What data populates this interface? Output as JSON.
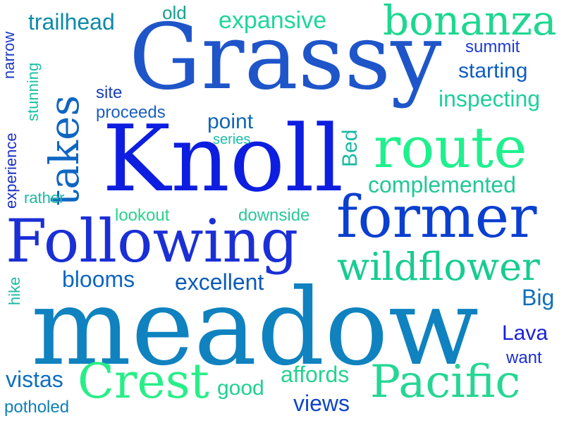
{
  "colors": {
    "blue": "#1a3fd1",
    "navy": "#1c22c8",
    "royal": "#0a2ee0",
    "teal": "#0f84b8",
    "sea": "#1aa8a0",
    "mint": "#22d890",
    "green": "#2ae38c"
  },
  "words": [
    {
      "text": "Grassy",
      "color": "#1e55c9"
    },
    {
      "text": "Knoll",
      "color": "#0d1ee0"
    },
    {
      "text": "meadow",
      "color": "#0f82bf"
    },
    {
      "text": "Following",
      "color": "#1a2fd6"
    },
    {
      "text": "former",
      "color": "#0b3fd0"
    },
    {
      "text": "route",
      "color": "#1ff08e"
    },
    {
      "text": "bonanza",
      "color": "#1ed790"
    },
    {
      "text": "takes",
      "color": "#0e66c2"
    },
    {
      "text": "wildflower",
      "color": "#16cc90"
    },
    {
      "text": "Pacific",
      "color": "#26d694"
    },
    {
      "text": "Crest",
      "color": "#28ee88"
    },
    {
      "text": "trailhead",
      "color": "#0d8aa8"
    },
    {
      "text": "expansive",
      "color": "#1fd69a"
    },
    {
      "text": "old",
      "color": "#1aa08f"
    },
    {
      "text": "summit",
      "color": "#1e3bd4"
    },
    {
      "text": "starting",
      "color": "#0f5dc2"
    },
    {
      "text": "inspecting",
      "color": "#1fcf9c"
    },
    {
      "text": "narrow",
      "color": "#1e3bc6"
    },
    {
      "text": "stunning",
      "color": "#19c2a4"
    },
    {
      "text": "site",
      "color": "#1a3fb6"
    },
    {
      "text": "proceeds",
      "color": "#1a5fc0"
    },
    {
      "text": "point",
      "color": "#0d66b8"
    },
    {
      "text": "series",
      "color": "#1bbfa8"
    },
    {
      "text": "Bed",
      "color": "#18b8a4"
    },
    {
      "text": "complemented",
      "color": "#22c896"
    },
    {
      "text": "experience",
      "color": "#1a2fc6"
    },
    {
      "text": "rather",
      "color": "#1db8a0"
    },
    {
      "text": "lookout",
      "color": "#2ad28c"
    },
    {
      "text": "downside",
      "color": "#2ac79a"
    },
    {
      "text": "blooms",
      "color": "#0e66c2"
    },
    {
      "text": "excellent",
      "color": "#0a5bb8"
    },
    {
      "text": "hike",
      "color": "#1fb8a4"
    },
    {
      "text": "Big",
      "color": "#0f6fb8"
    },
    {
      "text": "Lava",
      "color": "#1a1fd6"
    },
    {
      "text": "want",
      "color": "#1a2fd0"
    },
    {
      "text": "vistas",
      "color": "#0e6fbf"
    },
    {
      "text": "good",
      "color": "#1ed290"
    },
    {
      "text": "affords",
      "color": "#26d290"
    },
    {
      "text": "views",
      "color": "#0e46c8"
    },
    {
      "text": "potholed",
      "color": "#0f7fb8"
    }
  ]
}
